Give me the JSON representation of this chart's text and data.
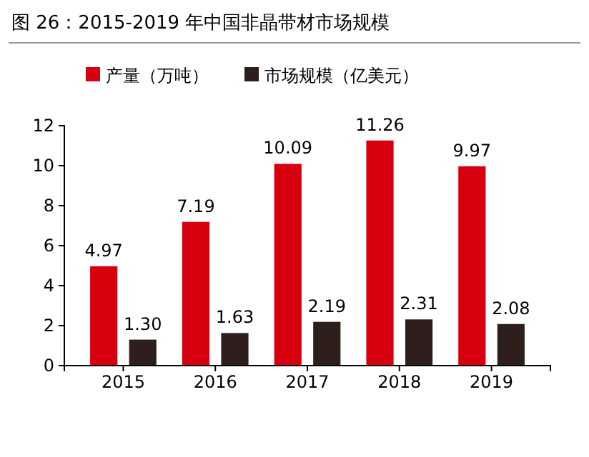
{
  "chart_data": {
    "type": "bar",
    "title": "图 26：2015-2019 年中国非晶带材市场规模",
    "categories": [
      "2015",
      "2016",
      "2017",
      "2018",
      "2019"
    ],
    "series": [
      {
        "name": "产量（万吨）",
        "color": "#d7000f",
        "values": [
          4.97,
          7.19,
          10.09,
          11.26,
          9.97
        ],
        "value_labels": [
          "4.97",
          "7.19",
          "10.09",
          "11.26",
          "9.97"
        ]
      },
      {
        "name": "市场规模（亿美元）",
        "color": "#2e1f1c",
        "values": [
          1.3,
          1.63,
          2.19,
          2.31,
          2.08
        ],
        "value_labels": [
          "1.30",
          "1.63",
          "2.19",
          "2.31",
          "2.08"
        ]
      }
    ],
    "ylim": [
      0,
      12
    ],
    "yticks": [
      0,
      2,
      4,
      6,
      8,
      10,
      12
    ],
    "legend": "top",
    "grid": false
  }
}
